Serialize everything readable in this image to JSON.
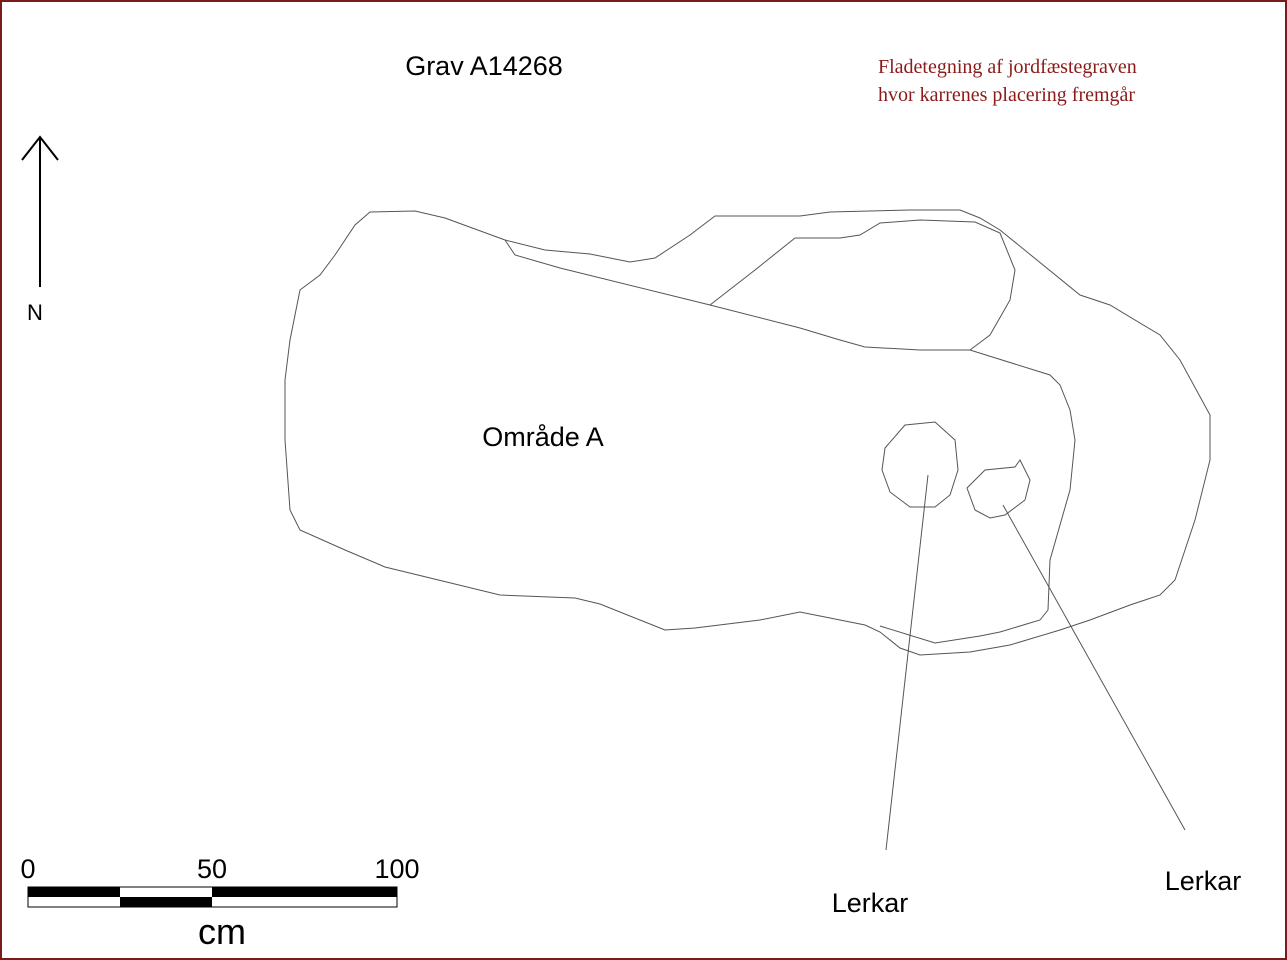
{
  "title": "Grav A14268",
  "caption": [
    "Fladetegning af jordfæstegraven",
    "hvor karrenes placering fremgår"
  ],
  "north": "N",
  "area_label": "Område A",
  "labels": [
    "Lerkar",
    "Lerkar"
  ],
  "scale": {
    "ticks": [
      0,
      50,
      100
    ],
    "unit": "cm"
  }
}
